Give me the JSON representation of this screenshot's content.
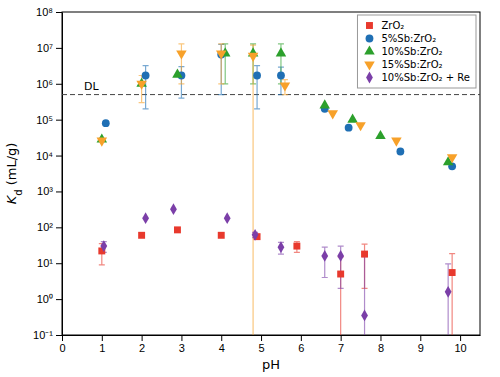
{
  "chart_data": {
    "type": "scatter",
    "x_label": "pH",
    "y_label": "Kd (mL/g)",
    "xlim": [
      0,
      10.5
    ],
    "xticks": [
      0,
      1,
      2,
      3,
      4,
      5,
      6,
      7,
      8,
      9,
      10
    ],
    "ylim": [
      0.1,
      100000000
    ],
    "yticks": [
      {
        "value": 0.1,
        "label": "10⁻¹"
      },
      {
        "value": 1,
        "label": "10⁰"
      },
      {
        "value": 10,
        "label": "10¹"
      },
      {
        "value": 100,
        "label": "10²"
      },
      {
        "value": 1000,
        "label": "10³"
      },
      {
        "value": 10000,
        "label": "10⁴"
      },
      {
        "value": 100000,
        "label": "10⁵"
      },
      {
        "value": 1000000,
        "label": "10⁶"
      },
      {
        "value": 10000000,
        "label": "10⁷"
      },
      {
        "value": 100000000,
        "label": "10⁸"
      }
    ],
    "log": "y",
    "grid": false,
    "legend": "top-right",
    "annotations": [
      {
        "text": "DL",
        "y": 500000,
        "line_style": "dashed"
      }
    ],
    "series": [
      {
        "name": "ZrO₂",
        "color": "#e8392d",
        "marker": "square",
        "x": [
          1.0,
          2.0,
          2.9,
          4.0,
          4.9,
          5.9,
          7.0,
          7.6,
          9.8
        ],
        "values": [
          22,
          60,
          85,
          60,
          55,
          30,
          5,
          18,
          5.5
        ],
        "errors": [
          13,
          null,
          null,
          null,
          8,
          10,
          10,
          16,
          13
        ]
      },
      {
        "name": "5%Sb:ZrO₂",
        "color": "#1f6fb4",
        "marker": "circle",
        "x": [
          1.1,
          2.1,
          3.0,
          4.0,
          4.9,
          5.5,
          6.6,
          7.2,
          8.5,
          9.8
        ],
        "values": [
          80000,
          1700000,
          1700000,
          6500000,
          1700000,
          1700000,
          200000,
          60000,
          13000,
          5000
        ],
        "errors": [
          null,
          1500000,
          1300000,
          6000000,
          1500000,
          1200000,
          null,
          null,
          null,
          null
        ]
      },
      {
        "name": "10%Sb:ZrO₂",
        "color": "#2ca02c",
        "marker": "triangle-up",
        "x": [
          1.0,
          2.0,
          2.9,
          4.1,
          4.8,
          5.5,
          6.6,
          7.3,
          8.0,
          9.7
        ],
        "values": [
          28000,
          1000000,
          1800000,
          7000000,
          7000000,
          7000000,
          250000,
          100000,
          35000,
          6500
        ],
        "errors": [
          null,
          null,
          null,
          6000000,
          6000000,
          6000000,
          null,
          null,
          null,
          null
        ]
      },
      {
        "name": "15%Sb:ZrO₂",
        "color": "#f7a12a",
        "marker": "triangle-down",
        "x": [
          1.0,
          2.0,
          3.0,
          4.0,
          4.8,
          5.6,
          6.8,
          7.5,
          8.4,
          9.8
        ],
        "values": [
          26000,
          1000000,
          7000000,
          7000000,
          6000000,
          900000,
          150000,
          70000,
          26000,
          9000
        ],
        "errors": [
          null,
          700000,
          6000000,
          6000000,
          6000000,
          400000,
          null,
          null,
          null,
          null
        ]
      },
      {
        "name": "10%Sb:ZrO₂ + Re",
        "color": "#7b3fa8",
        "marker": "diamond",
        "x": [
          1.05,
          2.1,
          2.8,
          4.15,
          4.85,
          5.5,
          6.6,
          7.0,
          7.6,
          9.7
        ],
        "values": [
          30,
          180,
          320,
          180,
          62,
          28,
          16,
          16,
          0.35,
          1.6
        ],
        "errors": [
          10,
          null,
          null,
          null,
          10,
          10,
          12,
          14,
          15,
          8
        ]
      }
    ]
  }
}
